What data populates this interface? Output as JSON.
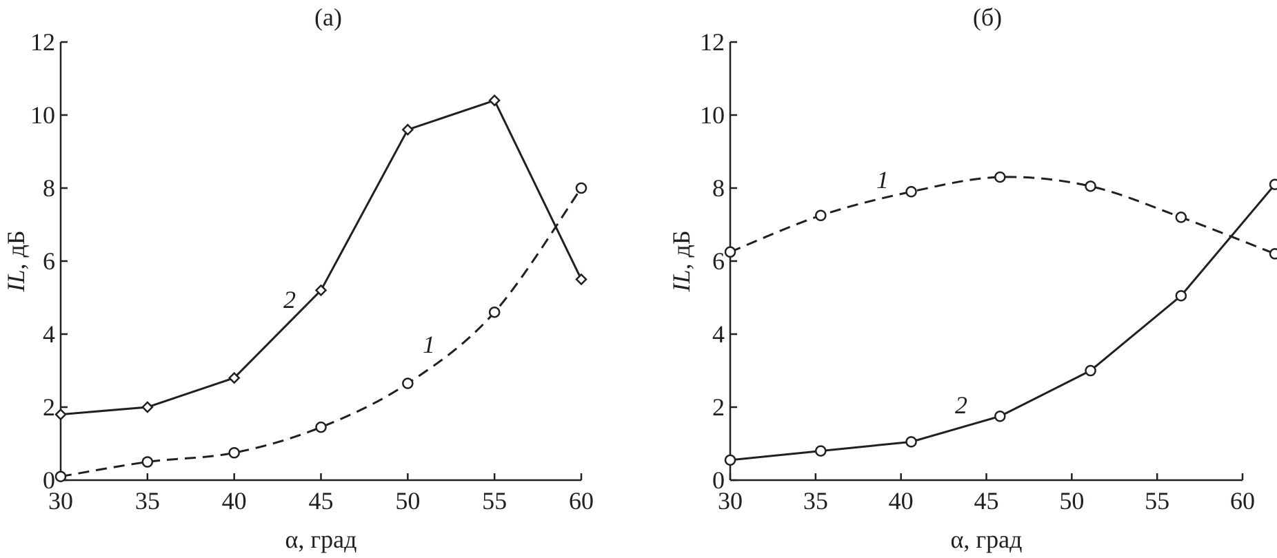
{
  "chart_data": [
    {
      "type": "line",
      "title": "(а)",
      "xlabel": "α, град",
      "ylabel_italic": "IL",
      "ylabel_unit": ", дБ",
      "xlim": [
        30,
        60
      ],
      "ylim": [
        0,
        12
      ],
      "xticks": [
        30,
        35,
        40,
        45,
        50,
        55,
        60
      ],
      "yticks": [
        0,
        2,
        4,
        6,
        8,
        10,
        12
      ],
      "grid": false,
      "series": [
        {
          "name": "1",
          "line_style": "dashed",
          "marker": "circle",
          "smooth": true,
          "x": [
            30,
            35,
            40,
            45,
            50,
            55,
            60
          ],
          "y": [
            0.1,
            0.5,
            0.75,
            1.45,
            2.65,
            4.6,
            8.0
          ]
        },
        {
          "name": "2",
          "line_style": "solid",
          "marker": "diamond",
          "smooth": false,
          "x": [
            30,
            35,
            40,
            45,
            50,
            55,
            60
          ],
          "y": [
            1.8,
            2.0,
            2.8,
            5.2,
            9.6,
            10.4,
            5.5
          ]
        }
      ]
    },
    {
      "type": "line",
      "title": "(б)",
      "xlabel": "α, град",
      "ylabel_italic": "IL",
      "ylabel_unit": ", дБ",
      "xlim": [
        30,
        60
      ],
      "ylim": [
        0,
        12
      ],
      "xticks": [
        30,
        35,
        40,
        45,
        50,
        55,
        60
      ],
      "yticks": [
        0,
        2,
        4,
        6,
        8,
        10,
        12
      ],
      "grid": false,
      "series": [
        {
          "name": "1",
          "line_style": "dashed",
          "marker": "circle",
          "smooth": true,
          "x": [
            30,
            35.3,
            40.6,
            45.8,
            51.1,
            56.4,
            61.9
          ],
          "y": [
            6.25,
            7.25,
            7.9,
            8.3,
            8.05,
            7.2,
            6.2
          ]
        },
        {
          "name": "2",
          "line_style": "solid",
          "marker": "circle",
          "smooth": false,
          "x": [
            30,
            35.3,
            40.6,
            45.8,
            51.1,
            56.4,
            61.9
          ],
          "y": [
            0.55,
            0.8,
            1.05,
            1.75,
            3.0,
            5.05,
            8.1
          ]
        }
      ]
    }
  ]
}
